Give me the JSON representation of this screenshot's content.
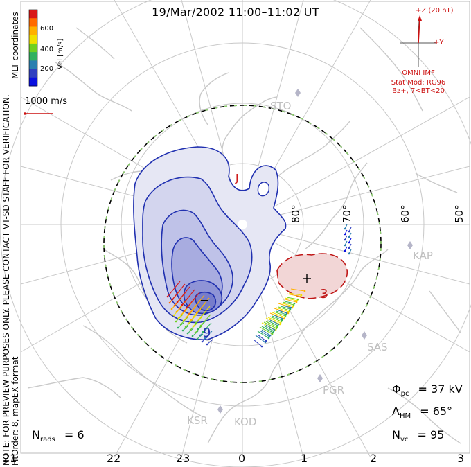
{
  "title": "19/Mar/2002 11:00–11:02 UT",
  "side_text": {
    "line1": "NOTE: FOR PREVIEW PURPOSES ONLY. PLEASE CONTACT VT-SD STAFF FOR VERIFICATION.",
    "line2": "FitOrder: 8, mapEX format",
    "coords": "MLT coordinates"
  },
  "color_bar": {
    "label": "Vel [m/s]",
    "ticks": [
      "600",
      "400",
      "200"
    ],
    "colors": [
      "#d81818",
      "#ff6a00",
      "#ffb000",
      "#f0e000",
      "#6fd020",
      "#30b060",
      "#2a7fb0",
      "#3040c0",
      "#0a10e0"
    ]
  },
  "scale_vector": {
    "label": "1000 m/s",
    "color": "#cc1111"
  },
  "imf": {
    "z_label": "+Z (20 nT)",
    "y_label": "+Y",
    "source": "OMNI IMF",
    "model": "Stat Mod: RG96",
    "condition": "Bz+, 7<BT<20"
  },
  "latitude_labels": [
    "80°",
    "70°",
    "60°",
    "50°"
  ],
  "stations": [
    "STO",
    "KAP",
    "SAS",
    "PGR",
    "KSR",
    "KOD"
  ],
  "contour_labels": {
    "neg_label": "9",
    "pos_label": "3",
    "min_marker": "−",
    "max_marker": "+"
  },
  "marker_J": "J",
  "stats": {
    "phi_sym": "Φ",
    "phi_sub": "pc",
    "phi_value": "= 37 kV",
    "lambda_sym": "Λ",
    "lambda_sub": "HM",
    "lambda_value": "= 65°",
    "nvc_sym": "N",
    "nvc_sub": "vc",
    "nvc_value": "= 95",
    "nrads_sym": "N",
    "nrads_sub": "rads",
    "nrads_value": "= 6"
  },
  "mlt_hours": [
    "21",
    "22",
    "23",
    "0",
    "1",
    "2",
    "3"
  ]
}
